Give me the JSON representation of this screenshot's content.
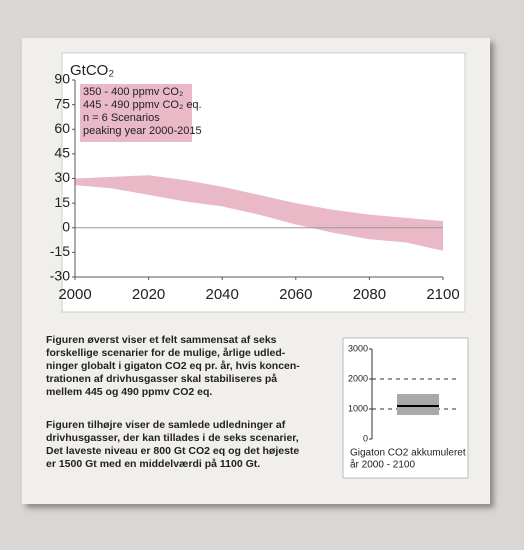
{
  "chart_data": [
    {
      "type": "band",
      "title": "GtCO₂",
      "legend_lines": [
        "350 - 400 ppmv CO₂",
        "445 - 490 ppmv CO₂ eq.",
        "n = 6 Scenarios",
        "peaking year 2000-2015"
      ],
      "x": [
        2000,
        2010,
        2020,
        2030,
        2040,
        2050,
        2060,
        2070,
        2080,
        2090,
        2100
      ],
      "upper": [
        30,
        31,
        32,
        29,
        25,
        20,
        15,
        11,
        8,
        6,
        4
      ],
      "lower": [
        26,
        24,
        20,
        16,
        13,
        8,
        2,
        -3,
        -7,
        -9,
        -14
      ],
      "color": "#e9b9c8",
      "xlim": [
        2000,
        2100
      ],
      "xticks": [
        2000,
        2020,
        2040,
        2060,
        2080,
        2100
      ],
      "ylim": [
        -30,
        90
      ],
      "yticks": [
        -30,
        -15,
        0,
        15,
        30,
        45,
        60,
        75,
        90
      ]
    },
    {
      "type": "box",
      "label_lines": [
        "Gigaton CO2 akkumuleret",
        "år 2000 - 2100"
      ],
      "min": 800,
      "max": 1500,
      "median": 1100,
      "color": "#a9a9a9",
      "ylim": [
        0,
        3000
      ],
      "yticks": [
        0,
        1000,
        2000,
        3000
      ],
      "grid_dashed": [
        1000,
        2000
      ]
    }
  ],
  "paragraphs": [
    [
      "Figuren øverst viser et felt sammensat af seks",
      "forskellige scenarier for de mulige, årlige udled-",
      "ninger globalt i gigaton CO2 eq pr. år, hvis koncen-",
      "trationen af drivhusgasser skal stabiliseres på",
      "mellem 445 og 490 ppmv CO2 eq."
    ],
    [
      "Figuren tilhøjre viser de samlede udledninger af",
      "drivhusgasser, der kan tillades i de seks scenarier,",
      "Det laveste niveau er 800 Gt CO2 eq og det højeste",
      "er 1500 Gt med en middelværdi på 1100 Gt."
    ]
  ]
}
